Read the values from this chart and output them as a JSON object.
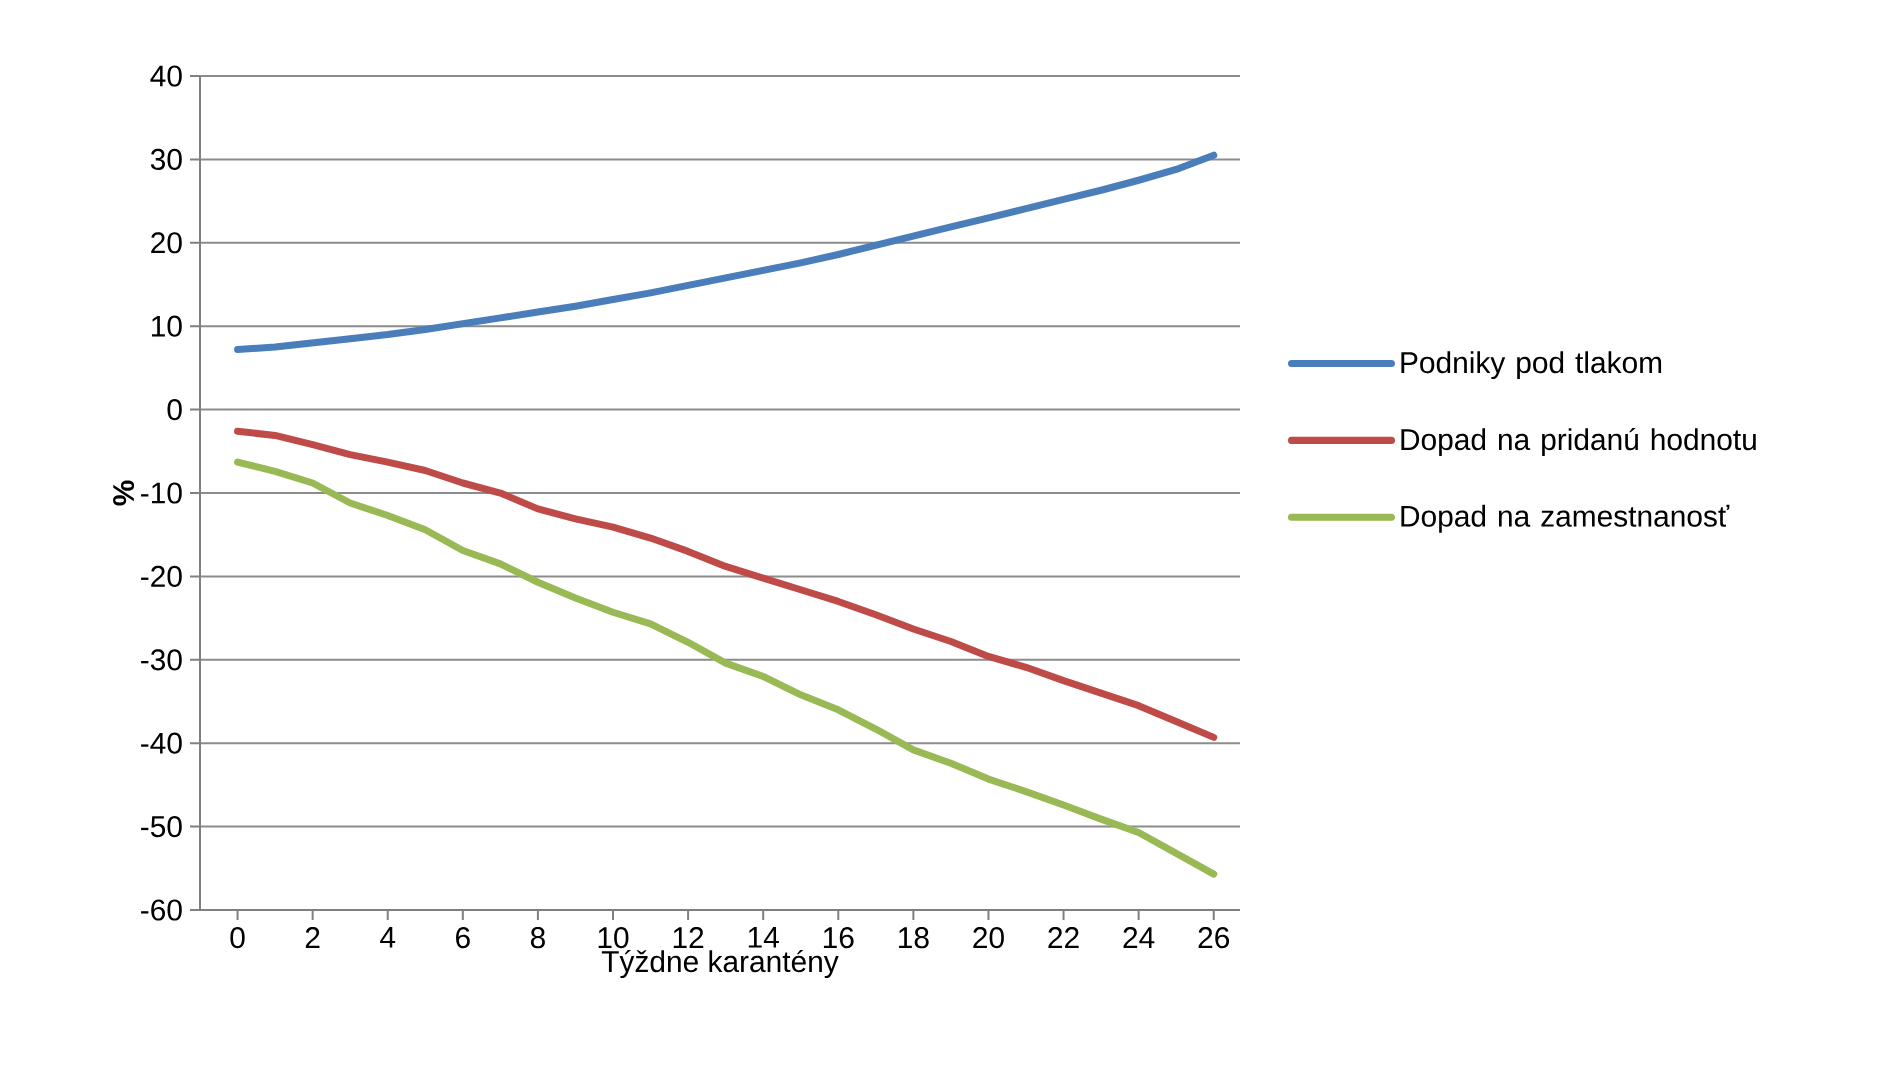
{
  "chart_data": {
    "type": "line",
    "xlabel": "Týždne karantény",
    "ylabel": "%",
    "x": [
      0,
      1,
      2,
      3,
      4,
      5,
      6,
      7,
      8,
      9,
      10,
      11,
      12,
      13,
      14,
      15,
      16,
      17,
      18,
      19,
      20,
      21,
      22,
      23,
      24,
      25,
      26
    ],
    "xlim": [
      -1,
      26.7
    ],
    "xticks": [
      0,
      2,
      4,
      6,
      8,
      10,
      12,
      14,
      16,
      18,
      20,
      22,
      24,
      26
    ],
    "ylim": [
      -60,
      40
    ],
    "yticks": [
      -60,
      -50,
      -40,
      -30,
      -20,
      -10,
      0,
      10,
      20,
      30,
      40
    ],
    "grid": "y",
    "legend": "right",
    "marker": "none",
    "line_style": "solid",
    "series": [
      {
        "name": "Podniky pod tlakom",
        "color": "#4a7ebb",
        "values": [
          7.2,
          7.5,
          8,
          8.5,
          9,
          9.6,
          10.3,
          11,
          11.7,
          12.4,
          13.2,
          14,
          14.9,
          15.8,
          16.7,
          17.6,
          18.6,
          19.7,
          20.8,
          21.9,
          23,
          24.1,
          25.2,
          26.3,
          27.5,
          28.8,
          30.5
        ]
      },
      {
        "name": "Dopad na pridanú hodnotu",
        "color": "#be4b48",
        "values": [
          -2.6,
          -3.1,
          -4.2,
          -5.4,
          -6.3,
          -7.3,
          -8.8,
          -10,
          -11.9,
          -13.1,
          -14.1,
          -15.4,
          -17,
          -18.8,
          -20.2,
          -21.6,
          -23,
          -24.6,
          -26.3,
          -27.8,
          -29.6,
          -30.9,
          -32.5,
          -34,
          -35.5,
          -37.4,
          -39.3
        ]
      },
      {
        "name": "Dopad na zamestnanosť",
        "color": "#98b954",
        "values": [
          -6.3,
          -7.4,
          -8.8,
          -11.2,
          -12.7,
          -14.4,
          -16.9,
          -18.5,
          -20.7,
          -22.6,
          -24.3,
          -25.7,
          -27.9,
          -30.4,
          -32,
          -34.2,
          -36,
          -38.3,
          -40.8,
          -42.4,
          -44.3,
          -45.8,
          -47.4,
          -49.1,
          -50.7,
          -53.2,
          -55.7
        ]
      }
    ]
  }
}
